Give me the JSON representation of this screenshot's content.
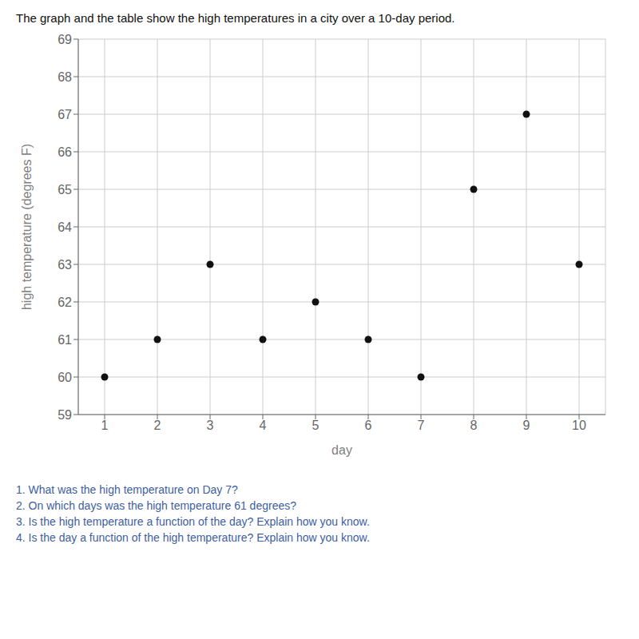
{
  "chart_data": {
    "type": "scatter",
    "title": "The graph and the table show the high temperatures in a city over a 10-day period.",
    "x": [
      1,
      2,
      3,
      4,
      5,
      6,
      7,
      8,
      9,
      10
    ],
    "values": [
      60,
      61,
      63,
      61,
      62,
      61,
      60,
      65,
      67,
      63
    ],
    "xlabel": "day",
    "ylabel": "high temperature (degrees F)",
    "xlim": [
      0.5,
      10.5
    ],
    "ylim": [
      59,
      69
    ],
    "xticks": [
      1,
      2,
      3,
      4,
      5,
      6,
      7,
      8,
      9,
      10
    ],
    "yticks": [
      59,
      60,
      61,
      62,
      63,
      64,
      65,
      66,
      67,
      68,
      69
    ],
    "grid": true,
    "color": "#111111",
    "annotations": [
      "1. What was the high temperature on Day 7?",
      "2. On which days was the high temperature 61 degrees?",
      "3. Is the high temperature a function of the day? Explain how you know.",
      "4. Is the day a function of the high temperature? Explain how you know."
    ]
  }
}
